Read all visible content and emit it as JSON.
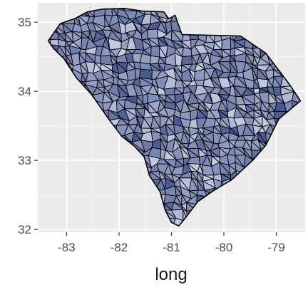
{
  "chart_data": {
    "type": "choropleth",
    "region_name": "",
    "xlabel": "long",
    "ylabel": "",
    "x_ticks": [
      "-83",
      "-82",
      "-81",
      "-80",
      "-79"
    ],
    "y_ticks": [
      "32",
      "33",
      "34",
      "35"
    ],
    "x_tick_values": [
      -83,
      -82,
      -81,
      -80,
      -79
    ],
    "y_tick_values": [
      32,
      33,
      34,
      35
    ],
    "xlim": [
      -83.55,
      -78.45
    ],
    "ylim": [
      31.96,
      35.28
    ],
    "grid": true,
    "legend": "none",
    "outline": [
      [
        -83.35,
        34.73
      ],
      [
        -83.12,
        34.98
      ],
      [
        -82.85,
        35.05
      ],
      [
        -82.6,
        35.15
      ],
      [
        -82.3,
        35.19
      ],
      [
        -81.9,
        35.2
      ],
      [
        -81.55,
        35.16
      ],
      [
        -81.15,
        35.15
      ],
      [
        -81.05,
        35.05
      ],
      [
        -80.93,
        35.1
      ],
      [
        -80.8,
        34.82
      ],
      [
        -79.68,
        34.8
      ],
      [
        -79.2,
        34.55
      ],
      [
        -78.75,
        34.1
      ],
      [
        -78.54,
        33.86
      ],
      [
        -78.95,
        33.6
      ],
      [
        -79.2,
        33.22
      ],
      [
        -79.45,
        33.0
      ],
      [
        -79.85,
        32.72
      ],
      [
        -80.2,
        32.56
      ],
      [
        -80.5,
        32.4
      ],
      [
        -80.72,
        32.18
      ],
      [
        -80.86,
        32.05
      ],
      [
        -81.0,
        32.1
      ],
      [
        -81.12,
        32.28
      ],
      [
        -81.22,
        32.55
      ],
      [
        -81.42,
        32.78
      ],
      [
        -81.52,
        33.05
      ],
      [
        -81.7,
        33.2
      ],
      [
        -81.95,
        33.35
      ],
      [
        -82.2,
        33.6
      ],
      [
        -82.52,
        33.95
      ],
      [
        -82.82,
        34.2
      ],
      [
        -83.05,
        34.47
      ],
      [
        -83.25,
        34.62
      ]
    ]
  },
  "colors": {
    "panel_background": "#ebebeb",
    "grid_major": "#ffffff",
    "grid_minor": "#f5f5f5",
    "fill_low": "#c9cfe6",
    "fill_high": "#46578f",
    "border": "#000000"
  }
}
